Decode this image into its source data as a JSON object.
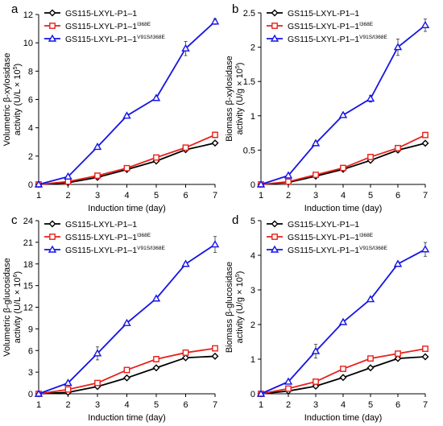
{
  "chart_data": [
    {
      "panel": "a",
      "type": "line",
      "x": [
        1,
        2,
        3,
        4,
        5,
        6,
        7
      ],
      "xticks": [
        "1",
        "2",
        "3",
        "4",
        "5",
        "6",
        "7"
      ],
      "xlabel": "Induction time (day)",
      "ylabel_line1": "Volumetric β-xylosidase",
      "ylabel_line2_main": "activity (U/L × 10",
      "ylabel_line2_sup": "5",
      "ylabel_line2_end": ")",
      "ylim": [
        0,
        12
      ],
      "yticks": [
        "0",
        "2",
        "4",
        "6",
        "8",
        "10",
        "12"
      ],
      "series": [
        {
          "name_main": "GS115-LXYL-P1–1",
          "name_sup": "",
          "color": "#000000",
          "marker": "diamond",
          "values": [
            0,
            0.12,
            0.5,
            1.05,
            1.65,
            2.45,
            2.92
          ],
          "errors": [
            0,
            0.05,
            0.06,
            0.08,
            0.1,
            0.1,
            0.1
          ]
        },
        {
          "name_main": "GS115-LXYL-P1–1",
          "name_sup": "I368E",
          "color": "#e8211b",
          "marker": "square",
          "values": [
            0,
            0.2,
            0.62,
            1.15,
            1.9,
            2.6,
            3.5
          ],
          "errors": [
            0,
            0.05,
            0.08,
            0.1,
            0.1,
            0.12,
            0.2
          ]
        },
        {
          "name_main": "GS115-LXYL-P1–1",
          "name_sup": "V91S/I368E",
          "color": "#1414e6",
          "marker": "triangle",
          "values": [
            0,
            0.55,
            2.65,
            4.85,
            6.1,
            9.6,
            11.5
          ],
          "errors": [
            0,
            0.05,
            0.1,
            0.12,
            0.12,
            0.5,
            0.2
          ]
        }
      ]
    },
    {
      "panel": "b",
      "type": "line",
      "x": [
        1,
        2,
        3,
        4,
        5,
        6,
        7
      ],
      "xticks": [
        "1",
        "2",
        "3",
        "4",
        "5",
        "6",
        "7"
      ],
      "xlabel": "Induction time (day)",
      "ylabel_line1": "Biomass β-xylosidase",
      "ylabel_line2_main": "activity (U/g × 10",
      "ylabel_line2_sup": "5",
      "ylabel_line2_end": ")",
      "ylim": [
        0,
        2.5
      ],
      "yticks": [
        "0",
        "0.5",
        "1",
        "1.5",
        "2",
        "2.5"
      ],
      "series": [
        {
          "name_main": "GS115-LXYL-P1–1",
          "name_sup": "",
          "color": "#000000",
          "marker": "diamond",
          "values": [
            0,
            0.03,
            0.12,
            0.22,
            0.35,
            0.5,
            0.6
          ],
          "errors": [
            0,
            0.01,
            0.02,
            0.02,
            0.02,
            0.03,
            0.02
          ]
        },
        {
          "name_main": "GS115-LXYL-P1–1",
          "name_sup": "I368E",
          "color": "#e8211b",
          "marker": "square",
          "values": [
            0,
            0.04,
            0.14,
            0.24,
            0.4,
            0.53,
            0.72
          ],
          "errors": [
            0,
            0.01,
            0.02,
            0.02,
            0.02,
            0.04,
            0.04
          ]
        },
        {
          "name_main": "GS115-LXYL-P1–1",
          "name_sup": "V91S/I368E",
          "color": "#1414e6",
          "marker": "triangle",
          "values": [
            0,
            0.13,
            0.6,
            1.01,
            1.25,
            2.0,
            2.32
          ],
          "errors": [
            0,
            0.02,
            0.03,
            0.03,
            0.05,
            0.12,
            0.09
          ]
        }
      ]
    },
    {
      "panel": "c",
      "type": "line",
      "x": [
        1,
        2,
        3,
        4,
        5,
        6,
        7
      ],
      "xticks": [
        "1",
        "2",
        "3",
        "4",
        "5",
        "6",
        "7"
      ],
      "xlabel": "Induction time (day)",
      "ylabel_line1": "Volumetric β-glucosidase",
      "ylabel_line2_main": "activity (U/L × 10",
      "ylabel_line2_sup": "6",
      "ylabel_line2_end": ")",
      "ylim": [
        0,
        24
      ],
      "yticks": [
        "0",
        "3",
        "6",
        "9",
        "12",
        "15",
        "18",
        "21",
        "24"
      ],
      "series": [
        {
          "name_main": "GS115-LXYL-P1–1",
          "name_sup": "",
          "color": "#000000",
          "marker": "diamond",
          "values": [
            0,
            0.2,
            1.0,
            2.2,
            3.6,
            5.0,
            5.2
          ],
          "errors": [
            0,
            0.05,
            0.1,
            0.15,
            0.15,
            0.15,
            0.15
          ]
        },
        {
          "name_main": "GS115-LXYL-P1–1",
          "name_sup": "I368E",
          "color": "#e8211b",
          "marker": "square",
          "values": [
            0,
            0.6,
            1.5,
            3.3,
            4.8,
            5.7,
            6.3
          ],
          "errors": [
            0,
            0.1,
            0.15,
            0.15,
            0.4,
            0.4,
            0.3
          ]
        },
        {
          "name_main": "GS115-LXYL-P1–1",
          "name_sup": "V91S/I368E",
          "color": "#1414e6",
          "marker": "triangle",
          "values": [
            0,
            1.5,
            5.6,
            9.8,
            13.2,
            18.0,
            20.7
          ],
          "errors": [
            0,
            0.1,
            0.9,
            0.2,
            0.2,
            0.2,
            1.1
          ]
        }
      ]
    },
    {
      "panel": "d",
      "type": "line",
      "x": [
        1,
        2,
        3,
        4,
        5,
        6,
        7
      ],
      "xticks": [
        "1",
        "2",
        "3",
        "4",
        "5",
        "6",
        "7"
      ],
      "xlabel": "Induction time (day)",
      "ylabel_line1": "Biomass β-glucosidase",
      "ylabel_line2_main": "activity (U/g × 10",
      "ylabel_line2_sup": "5",
      "ylabel_line2_end": ")",
      "ylim": [
        0,
        5
      ],
      "yticks": [
        "0",
        "1",
        "2",
        "3",
        "4",
        "5"
      ],
      "series": [
        {
          "name_main": "GS115-LXYL-P1–1",
          "name_sup": "",
          "color": "#000000",
          "marker": "diamond",
          "values": [
            0,
            0.08,
            0.22,
            0.47,
            0.75,
            1.02,
            1.07
          ],
          "errors": [
            0,
            0.02,
            0.03,
            0.03,
            0.03,
            0.04,
            0.03
          ]
        },
        {
          "name_main": "GS115-LXYL-P1–1",
          "name_sup": "I368E",
          "color": "#e8211b",
          "marker": "square",
          "values": [
            0,
            0.15,
            0.35,
            0.72,
            1.02,
            1.16,
            1.3
          ],
          "errors": [
            0,
            0.02,
            0.04,
            0.05,
            0.06,
            0.07,
            0.06
          ]
        },
        {
          "name_main": "GS115-LXYL-P1–1",
          "name_sup": "V91S/I368E",
          "color": "#1414e6",
          "marker": "triangle",
          "values": [
            0,
            0.35,
            1.23,
            2.07,
            2.73,
            3.75,
            4.17
          ],
          "errors": [
            0,
            0.03,
            0.2,
            0.04,
            0.04,
            0.05,
            0.2
          ]
        }
      ]
    }
  ]
}
